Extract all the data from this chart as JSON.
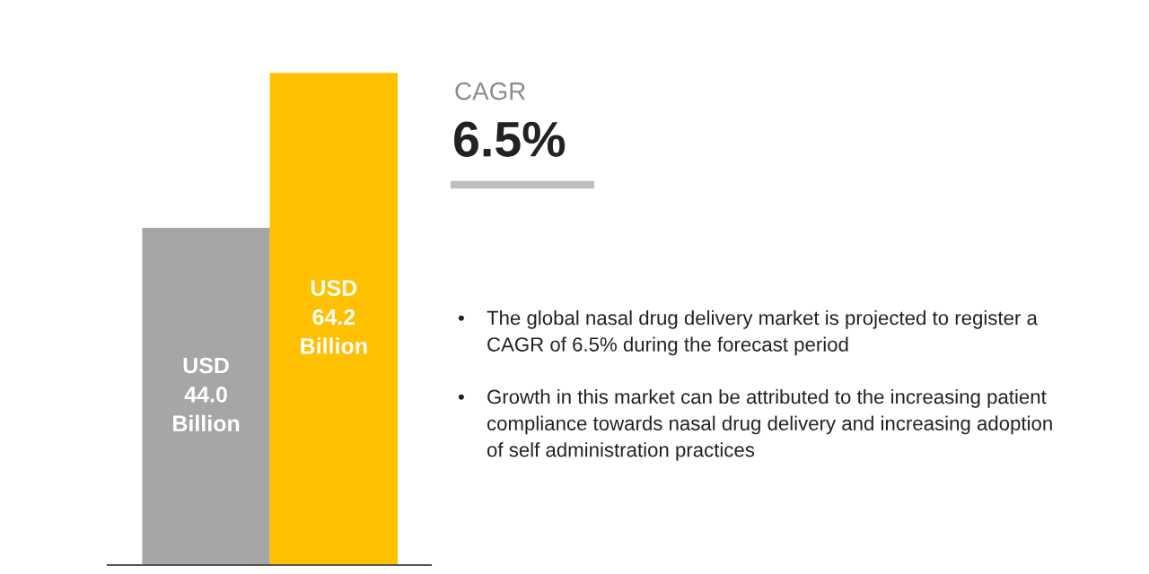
{
  "chart_data": {
    "type": "bar",
    "categories": [
      null,
      null
    ],
    "values": [
      44.0,
      64.2
    ],
    "colors": [
      "#a6a6a6",
      "#ffc000"
    ],
    "value_labels": [
      "USD\n44.0\nBillion",
      "USD\n64.2\nBillion"
    ],
    "annotations": [
      "CAGR",
      "6.5%",
      "• The global nasal drug delivery market is projected to register a\nCAGR of 6.5% during the forecast period",
      "• Growth in this market can be attributed to the increasing patient\ncompliance towards nasal drug delivery and increasing adoption\nof self administration practices"
    ]
  }
}
